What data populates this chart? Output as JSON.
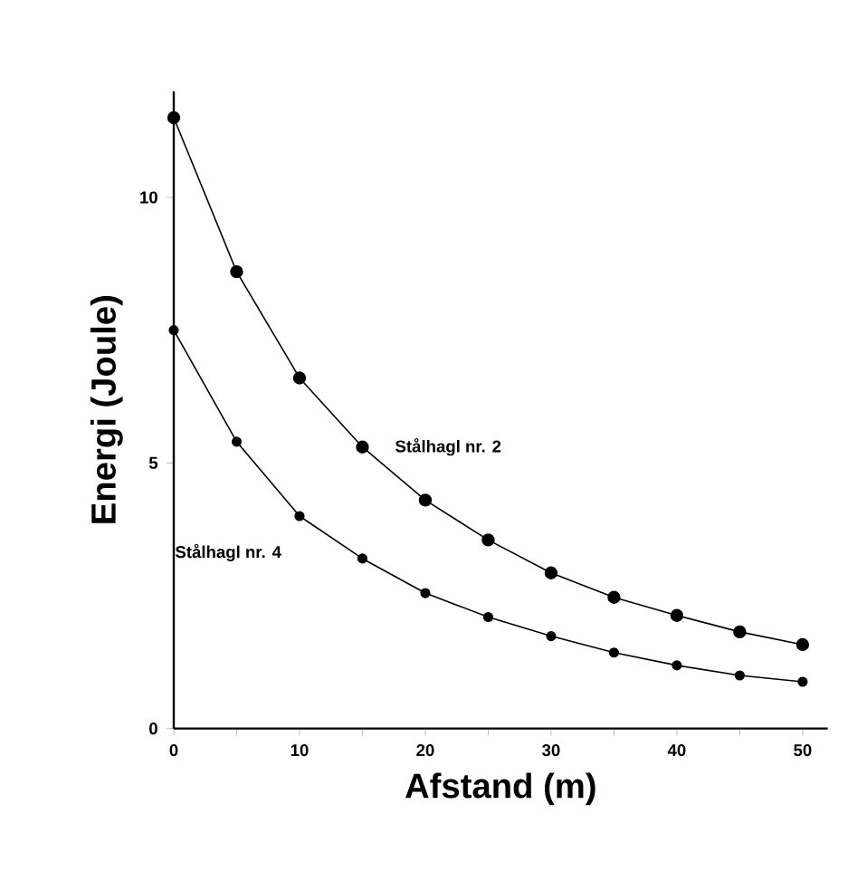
{
  "chart_data": {
    "type": "line",
    "xlabel": "Afstand (m)",
    "ylabel": "Energi (Joule)",
    "x": [
      0,
      5,
      10,
      15,
      20,
      25,
      30,
      35,
      40,
      45,
      50
    ],
    "series": [
      {
        "name": "Stålhagl nr. 2",
        "color": "#000000",
        "values": [
          11.5,
          8.6,
          6.6,
          5.3,
          4.3,
          3.55,
          2.93,
          2.47,
          2.13,
          1.82,
          1.58
        ]
      },
      {
        "name": "Stålhagl nr. 4",
        "color": "#000000",
        "values": [
          7.5,
          5.4,
          4.0,
          3.2,
          2.55,
          2.1,
          1.74,
          1.43,
          1.19,
          1.0,
          0.88
        ]
      }
    ],
    "xlim": [
      0,
      52
    ],
    "ylim": [
      0,
      12
    ],
    "xticks": [
      0,
      {
        "value": 5,
        "label": null
      },
      10,
      {
        "value": 15,
        "label": null
      },
      20,
      {
        "value": 25,
        "label": null
      },
      30,
      {
        "value": 35,
        "label": null
      },
      40,
      {
        "value": 45,
        "label": null
      },
      50
    ],
    "yticks": [
      0,
      5,
      10
    ],
    "grid": false,
    "legend": false,
    "marker": "circle",
    "line_style": "solid"
  }
}
